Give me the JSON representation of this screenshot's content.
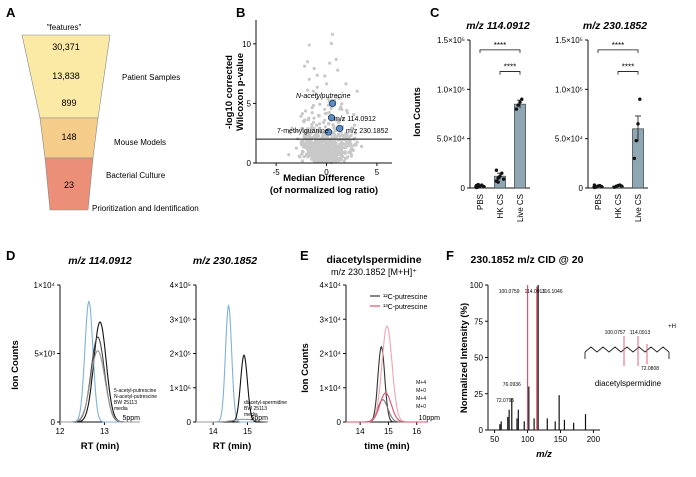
{
  "panels": {
    "A": {
      "label": "A",
      "header": "\"features\"",
      "chart_data": {
        "type": "funnel",
        "values": [
          30371,
          13838,
          899,
          148,
          23
        ],
        "value_labels": [
          "30,371",
          "13,838",
          "899",
          "148",
          "23"
        ],
        "stage_labels": [
          "Patient Samples",
          "Mouse Models",
          "Bacterial Culture",
          "Prioritization and Identification"
        ],
        "colors": [
          "#fbe9a6",
          "#fbe9a6",
          "#fbe9a6",
          "#f6cc8a",
          "#ec8f78"
        ]
      }
    },
    "B": {
      "label": "B",
      "chart_data": {
        "type": "scatter",
        "xlabel": "Median Difference\n(of normalized log ratio)",
        "ylabel": "-log10 corrected\nWilcoxon p-value",
        "xlim": [
          -7,
          6.5
        ],
        "ylim": [
          0,
          12
        ],
        "xticks": [
          "-5",
          "0",
          "5"
        ],
        "yticks": [
          "0",
          "5",
          "10"
        ],
        "threshold_y": 2,
        "highlighted": [
          {
            "label": "N-acetylputrecine",
            "x": 0.6,
            "y": 5.0
          },
          {
            "label": "m/z 114.0912",
            "x": 0.5,
            "y": 3.8
          },
          {
            "label": "m/z 230.1852",
            "x": 1.3,
            "y": 2.9
          },
          {
            "label": "7-methylguanine",
            "x": 0.2,
            "y": 2.6
          }
        ],
        "background_color": "#c8c8c8",
        "highlight_color": "#5b8fc4"
      }
    },
    "C": {
      "label": "C",
      "ylabel": "Ion Counts",
      "chart_data": [
        {
          "type": "bar",
          "title": "m/z 114.0912",
          "categories": [
            "PBS",
            "HK CS",
            "Live CS"
          ],
          "values": [
            2000,
            12000,
            85000
          ],
          "errors": [
            1000,
            3000,
            4000
          ],
          "points": [
            [
              500,
              1000,
              2000,
              3000,
              1500,
              2500,
              3500,
              1800
            ],
            [
              7000,
              10000,
              12000,
              15000,
              9000,
              18000,
              6000
            ],
            [
              80000,
              84000,
              87000,
              90000
            ]
          ],
          "ylim": [
            0,
            150000
          ],
          "yticks": [
            "0",
            "5.0×10⁴",
            "1.0×10⁵",
            "1.5×10⁵"
          ],
          "significance": [
            "****",
            "****"
          ],
          "bar_color": "#8fa6b3"
        },
        {
          "type": "bar",
          "title": "m/z 230.1852",
          "categories": [
            "PBS",
            "HK CS",
            "Live CS"
          ],
          "values": [
            1500,
            2000,
            60000
          ],
          "errors": [
            800,
            900,
            13000
          ],
          "points": [
            [
              500,
              1000,
              2000,
              2500,
              1500,
              3000
            ],
            [
              800,
              1500,
              2500,
              3000,
              2000
            ],
            [
              30000,
              48000,
              65000,
              90000
            ]
          ],
          "ylim": [
            0,
            150000
          ],
          "yticks": [
            "0",
            "5.0×10⁴",
            "1.0×10⁵",
            "1.5×10⁵"
          ],
          "significance": [
            "****",
            "****"
          ],
          "bar_color": "#8fa6b3"
        }
      ]
    },
    "D": {
      "label": "D",
      "chart_data": [
        {
          "type": "line",
          "title": "m/z 114.0912",
          "xlabel": "RT (min)",
          "ylabel": "Ion Counts",
          "xlim": [
            12,
            13.8
          ],
          "ylim": [
            0,
            10000
          ],
          "xticks": [
            "12",
            "13"
          ],
          "yticks": [
            "0",
            "5×10³",
            "1×10⁴"
          ],
          "ppm_label": "5ppm",
          "series": [
            {
              "name": "5-acetyl-putrescine",
              "color": "#7fb2db",
              "peak_x": 12.65,
              "peak_y": 8800,
              "width": 0.09
            },
            {
              "name": "N-acetyl-putrescine",
              "color": "#111111",
              "peak_x": 12.9,
              "peak_y": 7300,
              "width": 0.14
            },
            {
              "name": "BW 25113",
              "color": "#444444",
              "peak_x": 12.85,
              "peak_y": 6200,
              "width": 0.15
            },
            {
              "name": "media",
              "color": "#999999",
              "peak_x": 12.85,
              "peak_y": 5200,
              "width": 0.16
            }
          ],
          "legend_labels": [
            "5-acetyl-putrescine",
            "N-acetyl-putrescine",
            "BW 25113",
            "media"
          ]
        },
        {
          "type": "line",
          "title": "m/z 230.1852",
          "xlabel": "RT (min)",
          "xlim": [
            13.5,
            15.6
          ],
          "ylim": [
            0,
            400000
          ],
          "xticks": [
            "14",
            "15"
          ],
          "yticks": [
            "0",
            "1×10⁵",
            "2×10⁵",
            "3×10⁵",
            "4×10⁵"
          ],
          "ppm_label": "5ppm",
          "series": [
            {
              "name": "diacetyl-spermidine",
              "color": "#7fb2db",
              "peak_x": 14.45,
              "peak_y": 340000,
              "width": 0.09
            },
            {
              "name": "BW 25113",
              "color": "#111111",
              "peak_x": 14.9,
              "peak_y": 195000,
              "width": 0.1
            },
            {
              "name": "media",
              "color": "#999999",
              "peak_x": 14.9,
              "peak_y": 8000,
              "width": 0.3
            }
          ],
          "legend_labels": [
            "diacetyl-spermidine",
            "BW 25113",
            "media"
          ]
        }
      ]
    },
    "E": {
      "label": "E",
      "chart_data": {
        "type": "line",
        "title": "diacetylspermidine",
        "subtitle": "m/z 230.1852 [M+H]⁺",
        "xlabel": "time (min)",
        "ylabel": "Ion Counts",
        "xlim": [
          13.5,
          16.4
        ],
        "ylim": [
          0,
          40000
        ],
        "xticks": [
          "14",
          "15",
          "16"
        ],
        "yticks": [
          "0",
          "1×10⁴",
          "2×10⁴",
          "3×10⁴",
          "4×10⁴"
        ],
        "ppm_label": "10ppm",
        "legend": [
          {
            "label": "¹²C-putrescine",
            "color": "#333333"
          },
          {
            "label": "¹³C-putrescine",
            "color": "#e0506a"
          }
        ],
        "series": [
          {
            "name": "12C M+0",
            "color": "#333333",
            "peak_x": 14.75,
            "peak_y": 22000,
            "width": 0.12
          },
          {
            "name": "12C M+4",
            "color": "#777777",
            "peak_x": 14.8,
            "peak_y": 6500,
            "width": 0.18
          },
          {
            "name": "13C M+4",
            "color": "#f2a3b1",
            "peak_x": 14.95,
            "peak_y": 28000,
            "width": 0.18
          },
          {
            "name": "13C M+0",
            "color": "#e0506a",
            "peak_x": 14.9,
            "peak_y": 8500,
            "width": 0.2
          }
        ],
        "trace_labels": [
          "M+4",
          "M+0",
          "M+4",
          "M+0"
        ]
      }
    },
    "F": {
      "label": "F",
      "chart_data": {
        "type": "bar",
        "title": "230.1852 m/z CID @ 20",
        "xlabel": "m/z",
        "ylabel": "Normalized Intensity (%)",
        "xlim": [
          40,
          210
        ],
        "ylim": [
          0,
          100
        ],
        "xticks": [
          "50",
          "100",
          "150",
          "200"
        ],
        "yticks": [
          "0",
          "25",
          "50",
          "75",
          "100"
        ],
        "peaks": [
          {
            "x": 58,
            "y": 4
          },
          {
            "x": 60,
            "y": 6
          },
          {
            "x": 70,
            "y": 9
          },
          {
            "x": 72.0795,
            "y": 14
          },
          {
            "x": 76.0936,
            "y": 22
          },
          {
            "x": 84,
            "y": 8
          },
          {
            "x": 86,
            "y": 14
          },
          {
            "x": 95,
            "y": 6
          },
          {
            "x": 100.0759,
            "y": 100
          },
          {
            "x": 102,
            "y": 30
          },
          {
            "x": 110,
            "y": 8
          },
          {
            "x": 114.0913,
            "y": 99
          },
          {
            "x": 116.1046,
            "y": 100
          },
          {
            "x": 130,
            "y": 8
          },
          {
            "x": 142,
            "y": 6
          },
          {
            "x": 148,
            "y": 24
          },
          {
            "x": 156,
            "y": 7
          },
          {
            "x": 170,
            "y": 5
          },
          {
            "x": 188,
            "y": 11
          },
          {
            "x": 212,
            "y": 4
          }
        ],
        "highlighted_peaks": [
          100.0759,
          114.0913
        ],
        "peak_labels": [
          {
            "text": "100.0759",
            "x": 100.0759
          },
          {
            "text": "114.0913",
            "x": 114.0913
          },
          {
            "text": "116.1046",
            "x": 116.1046
          },
          {
            "text": "76.0936",
            "x": 76.0936
          },
          {
            "text": "72.0795",
            "x": 72.0795
          }
        ],
        "structure_labels": [
          "100.0757",
          "114.0913",
          "72.0808",
          "+H"
        ],
        "structure_name": "diacetylspermidine",
        "highlight_color": "#e0506a",
        "bar_color": "#111111"
      }
    }
  }
}
